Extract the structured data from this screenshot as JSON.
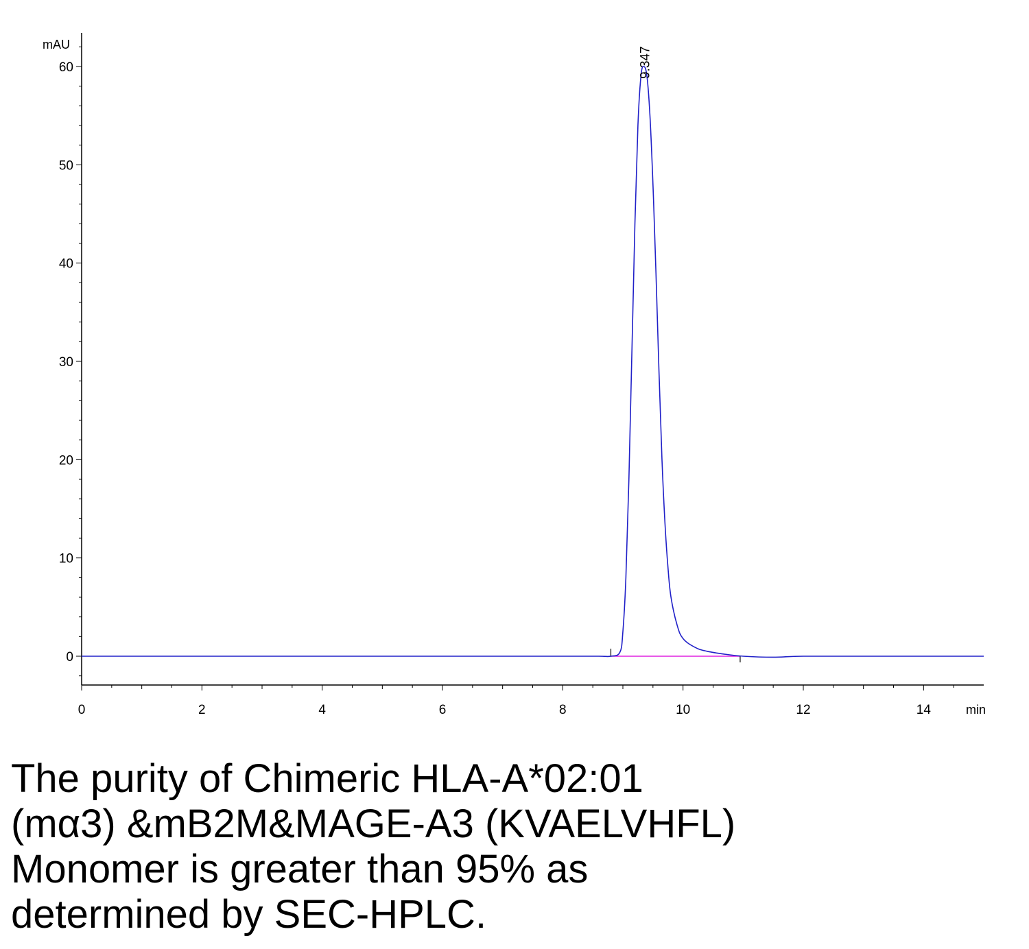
{
  "chart_data": {
    "type": "line",
    "title": "",
    "xlabel": "min",
    "ylabel": "mAU",
    "xlim": [
      0,
      15
    ],
    "ylim": [
      -3,
      63
    ],
    "x_ticks": [
      0,
      2,
      4,
      6,
      8,
      10,
      12,
      14
    ],
    "y_ticks": [
      0,
      10,
      20,
      30,
      40,
      50,
      60
    ],
    "grid": false,
    "series": [
      {
        "color": "#2020c8",
        "x": [
          0,
          1,
          2,
          3,
          4,
          5,
          6,
          7,
          8,
          8.6,
          8.8,
          8.95,
          9.0,
          9.05,
          9.1,
          9.15,
          9.2,
          9.25,
          9.3,
          9.347,
          9.4,
          9.45,
          9.5,
          9.55,
          9.6,
          9.65,
          9.7,
          9.75,
          9.8,
          9.9,
          10.0,
          10.2,
          10.4,
          10.7,
          11.0,
          11.5,
          12,
          13,
          14,
          15
        ],
        "y": [
          0,
          0,
          0,
          0,
          0,
          0,
          0,
          0,
          0,
          0,
          0,
          0.4,
          2.5,
          8,
          18,
          31,
          44,
          54,
          59,
          60,
          59,
          55,
          48,
          39,
          29,
          20,
          13.5,
          9,
          6,
          3.2,
          1.8,
          0.9,
          0.5,
          0.2,
          0,
          -0.1,
          0,
          0,
          0,
          0
        ]
      }
    ],
    "baseline": {
      "color": "#e020e0",
      "x_start": 8.8,
      "x_end": 10.95,
      "y": 0
    },
    "integration_markers": [
      8.8,
      10.95
    ],
    "annotations": [
      {
        "text": "9.347",
        "x": 9.347,
        "y": 60
      }
    ]
  },
  "caption": {
    "lines": [
      "The purity of Chimeric HLA-A*02:01",
      "(mα3) &mB2M&MAGE-A3 (KVAELVHFL)",
      "Monomer is greater than 95% as",
      "determined by SEC-HPLC."
    ]
  }
}
